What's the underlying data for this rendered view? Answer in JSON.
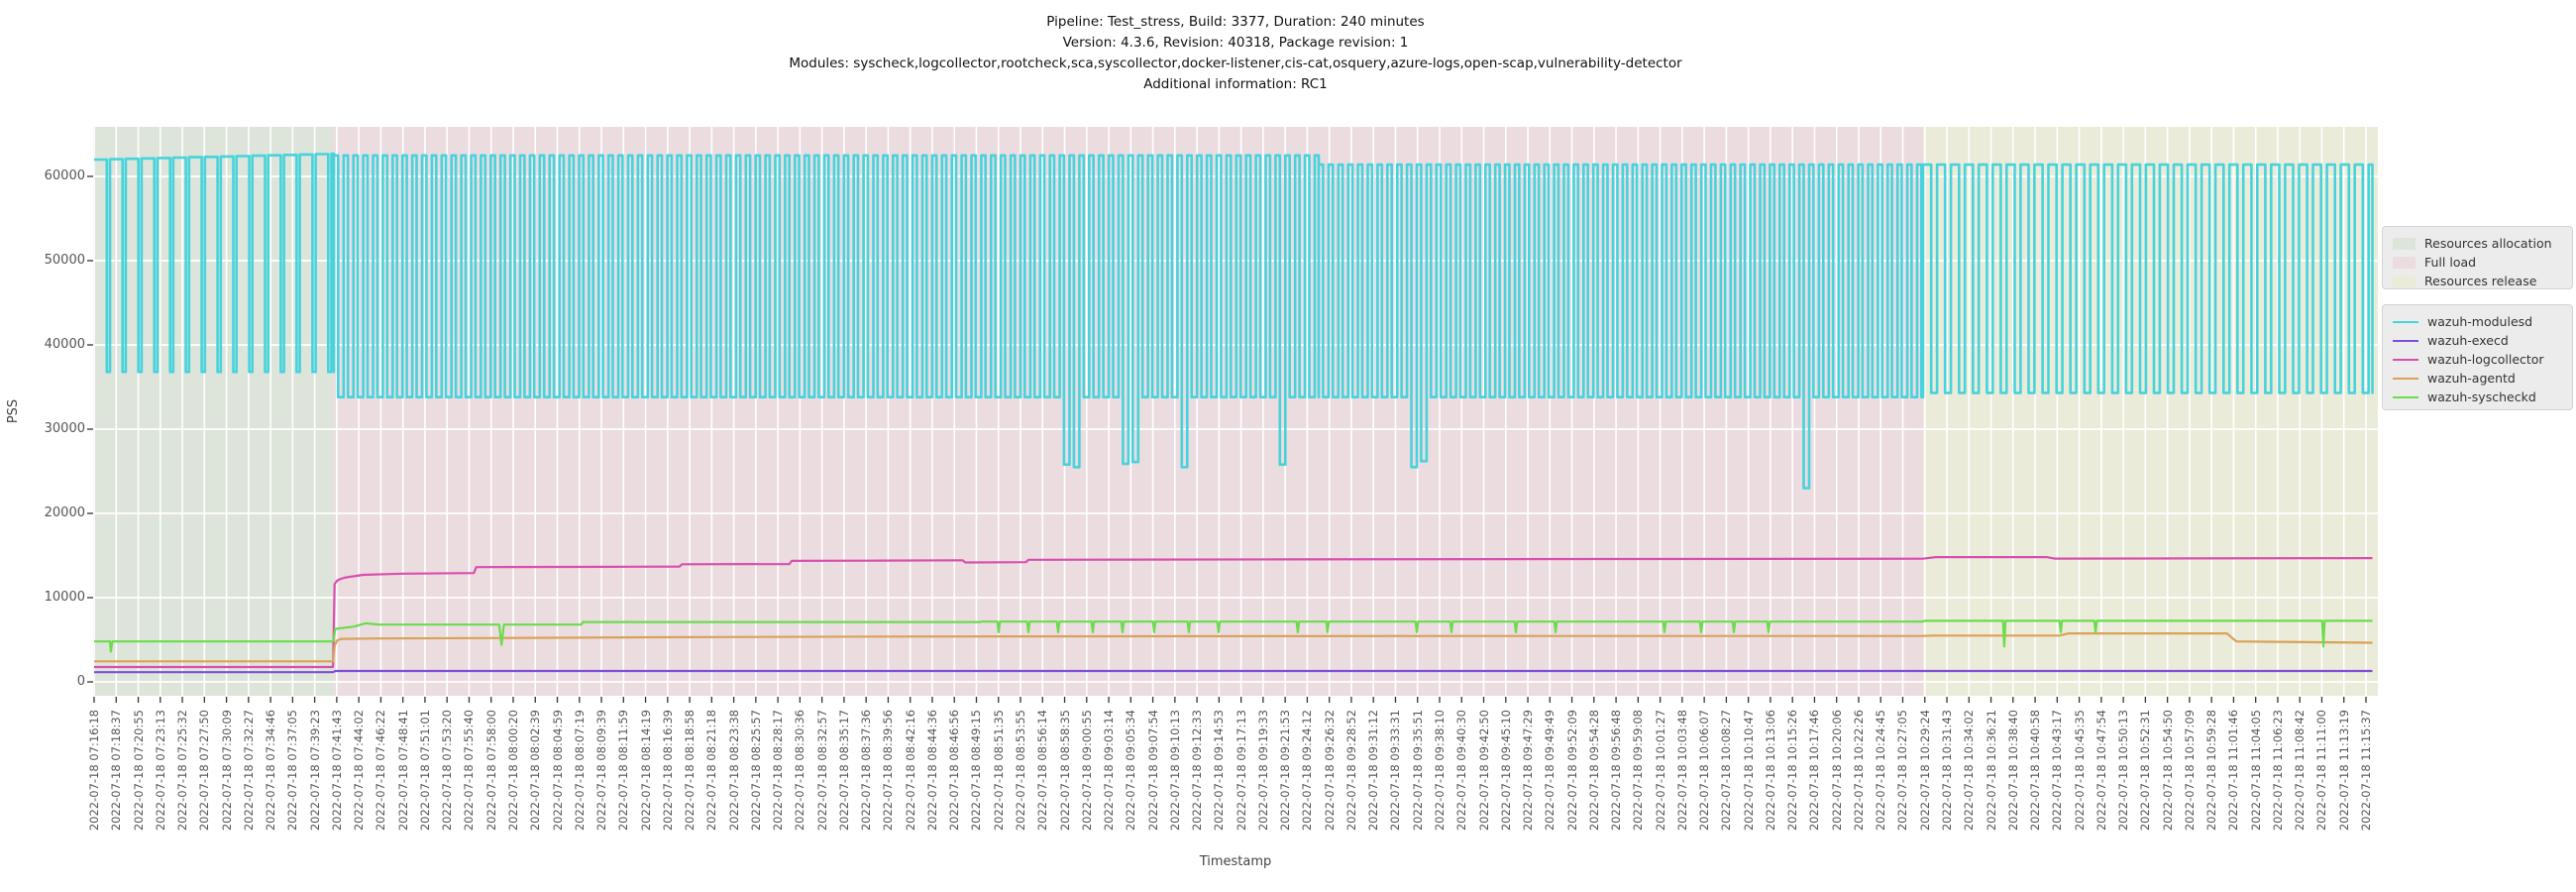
{
  "title": {
    "line1": "Pipeline: Test_stress, Build: 3377, Duration: 240 minutes",
    "line2": "Version: 4.3.6, Revision: 40318, Package revision: 1",
    "line3": "Modules: syscheck,logcollector,rootcheck,sca,syscollector,docker-listener,cis-cat,osquery,azure-logs,open-scap,vulnerability-detector",
    "line4": "Additional information: RC1"
  },
  "axes": {
    "ylabel": "PSS",
    "xlabel": "Timestamp"
  },
  "chart_data": {
    "type": "line",
    "ylabel": "PSS",
    "xlabel": "Timestamp",
    "ylim": [
      -1650,
      65900
    ],
    "y_ticks": [
      0,
      10000,
      20000,
      30000,
      40000,
      50000,
      60000
    ],
    "grid": true,
    "legend_position": "right",
    "x_start": "2022-07-18 07:16:18",
    "x_end": "2022-07-18 11:15:37",
    "x_total_seconds": 14359,
    "x_ticks": [
      "2022-07-18 07:16:18",
      "2022-07-18 07:18:37",
      "2022-07-18 07:20:55",
      "2022-07-18 07:23:13",
      "2022-07-18 07:25:32",
      "2022-07-18 07:27:50",
      "2022-07-18 07:30:09",
      "2022-07-18 07:32:27",
      "2022-07-18 07:34:46",
      "2022-07-18 07:37:05",
      "2022-07-18 07:39:23",
      "2022-07-18 07:41:43",
      "2022-07-18 07:44:02",
      "2022-07-18 07:46:22",
      "2022-07-18 07:48:41",
      "2022-07-18 07:51:01",
      "2022-07-18 07:53:20",
      "2022-07-18 07:55:40",
      "2022-07-18 07:58:00",
      "2022-07-18 08:00:20",
      "2022-07-18 08:02:39",
      "2022-07-18 08:04:59",
      "2022-07-18 08:07:19",
      "2022-07-18 08:09:39",
      "2022-07-18 08:11:59",
      "2022-07-18 08:14:19",
      "2022-07-18 08:16:39",
      "2022-07-18 08:18:58",
      "2022-07-18 08:21:18",
      "2022-07-18 08:23:38",
      "2022-07-18 08:25:57",
      "2022-07-18 08:28:17",
      "2022-07-18 08:30:36",
      "2022-07-18 08:32:57",
      "2022-07-18 08:35:17",
      "2022-07-18 08:37:36",
      "2022-07-18 08:39:56",
      "2022-07-18 08:42:16",
      "2022-07-18 08:44:36",
      "2022-07-18 08:46:56",
      "2022-07-18 08:49:15",
      "2022-07-18 08:51:35",
      "2022-07-18 08:53:55",
      "2022-07-18 08:56:14",
      "2022-07-18 08:58:35",
      "2022-07-18 09:00:55",
      "2022-07-18 09:03:14",
      "2022-07-18 09:05:34",
      "2022-07-18 09:07:54",
      "2022-07-18 09:10:13",
      "2022-07-18 09:12:33",
      "2022-07-18 09:14:53",
      "2022-07-18 09:17:13",
      "2022-07-18 09:19:33",
      "2022-07-18 09:21:53",
      "2022-07-18 09:24:12",
      "2022-07-18 09:26:32",
      "2022-07-18 09:28:52",
      "2022-07-18 09:31:12",
      "2022-07-18 09:33:31",
      "2022-07-18 09:35:51",
      "2022-07-18 09:38:10",
      "2022-07-18 09:40:30",
      "2022-07-18 09:42:50",
      "2022-07-18 09:45:10",
      "2022-07-18 09:47:29",
      "2022-07-18 09:49:49",
      "2022-07-18 09:52:09",
      "2022-07-18 09:54:28",
      "2022-07-18 09:56:48",
      "2022-07-18 09:59:08",
      "2022-07-18 10:01:27",
      "2022-07-18 10:03:48",
      "2022-07-18 10:06:07",
      "2022-07-18 10:08:27",
      "2022-07-18 10:10:47",
      "2022-07-18 10:13:06",
      "2022-07-18 10:15:26",
      "2022-07-18 10:17:46",
      "2022-07-18 10:20:06",
      "2022-07-18 10:22:26",
      "2022-07-18 10:24:45",
      "2022-07-18 10:27:05",
      "2022-07-18 10:29:24",
      "2022-07-18 10:31:43",
      "2022-07-18 10:34:02",
      "2022-07-18 10:36:21",
      "2022-07-18 10:38:40",
      "2022-07-18 10:40:58",
      "2022-07-18 10:43:17",
      "2022-07-18 10:45:35",
      "2022-07-18 10:47:54",
      "2022-07-18 10:50:13",
      "2022-07-18 10:52:31",
      "2022-07-18 10:54:50",
      "2022-07-18 10:57:09",
      "2022-07-18 10:59:28",
      "2022-07-18 11:01:46",
      "2022-07-18 11:04:05",
      "2022-07-18 11:06:23",
      "2022-07-18 11:08:42",
      "2022-07-18 11:11:00",
      "2022-07-18 11:13:19",
      "2022-07-18 11:15:37"
    ],
    "phases": [
      {
        "label": "Resources allocation",
        "start_s": -10,
        "end_s": 1515,
        "color": "#dde4da"
      },
      {
        "label": "Full load",
        "start_s": 1515,
        "end_s": 11560,
        "color": "#ebdce0"
      },
      {
        "label": "Resources release",
        "start_s": 11560,
        "end_s": 14440,
        "color": "#ebebd9"
      }
    ],
    "series": [
      {
        "name": "wazuh-modulesd",
        "color": "#46d3dc",
        "pattern": {
          "phases": [
            {
              "start_s": 0,
              "end_s": 1515,
              "high": 62000,
              "high_end": 62700,
              "low": 36800,
              "period_s": 100,
              "high_frac": 0.8
            },
            {
              "start_s": 1515,
              "end_s": 7740,
              "high": 62500,
              "low": 33800,
              "period_s": 62,
              "high_frac": 0.44
            },
            {
              "start_s": 7740,
              "end_s": 11560,
              "high": 61400,
              "low": 33800,
              "period_s": 62,
              "high_frac": 0.44
            },
            {
              "start_s": 11560,
              "end_s": 14400,
              "high": 61400,
              "low": 34300,
              "period_s": 88,
              "high_frac": 0.58
            }
          ],
          "deep_dips": [
            [
              6120,
              25800
            ],
            [
              6210,
              25500
            ],
            [
              6500,
              25900
            ],
            [
              6590,
              26100
            ],
            [
              6900,
              25500
            ],
            [
              7470,
              25800
            ],
            [
              8300,
              25500
            ],
            [
              8390,
              26200
            ],
            [
              10780,
              23000
            ]
          ]
        }
      },
      {
        "name": "wazuh-execd",
        "color": "#7e4fd8",
        "points": [
          [
            0,
            1150
          ],
          [
            1510,
            1150
          ],
          [
            1525,
            1290
          ],
          [
            14400,
            1290
          ]
        ]
      },
      {
        "name": "wazuh-logcollector",
        "color": "#da4fae",
        "points": [
          [
            0,
            1760
          ],
          [
            1510,
            1760
          ],
          [
            1520,
            11600
          ],
          [
            1535,
            12000
          ],
          [
            1555,
            12200
          ],
          [
            1590,
            12400
          ],
          [
            1700,
            12700
          ],
          [
            1950,
            12850
          ],
          [
            2400,
            12920
          ],
          [
            2415,
            13620
          ],
          [
            3290,
            13660
          ],
          [
            3700,
            13690
          ],
          [
            3715,
            13960
          ],
          [
            4395,
            13990
          ],
          [
            4410,
            14360
          ],
          [
            4900,
            14390
          ],
          [
            5490,
            14430
          ],
          [
            5505,
            14180
          ],
          [
            5890,
            14210
          ],
          [
            5905,
            14490
          ],
          [
            7500,
            14540
          ],
          [
            9500,
            14590
          ],
          [
            11560,
            14620
          ],
          [
            11640,
            14810
          ],
          [
            12340,
            14810
          ],
          [
            12390,
            14630
          ],
          [
            14400,
            14690
          ]
        ]
      },
      {
        "name": "wazuh-agentd",
        "color": "#d9a258",
        "points": [
          [
            0,
            2430
          ],
          [
            1510,
            2430
          ],
          [
            1520,
            4300
          ],
          [
            1535,
            4900
          ],
          [
            1560,
            5100
          ],
          [
            1800,
            5150
          ],
          [
            2500,
            5200
          ],
          [
            3500,
            5300
          ],
          [
            5000,
            5380
          ],
          [
            7000,
            5420
          ],
          [
            9000,
            5450
          ],
          [
            11560,
            5450
          ],
          [
            11620,
            5500
          ],
          [
            12420,
            5500
          ],
          [
            12480,
            5750
          ],
          [
            13480,
            5750
          ],
          [
            13540,
            4800
          ],
          [
            14400,
            4650
          ]
        ]
      },
      {
        "name": "wazuh-syscheckd",
        "color": "#6bdc4c",
        "points": [
          [
            0,
            4800
          ],
          [
            100,
            4800
          ],
          [
            106,
            3600
          ],
          [
            115,
            4800
          ],
          [
            1510,
            4800
          ],
          [
            1525,
            6300
          ],
          [
            1640,
            6550
          ],
          [
            1715,
            6950
          ],
          [
            1800,
            6800
          ],
          [
            2560,
            6800
          ],
          [
            2575,
            4400
          ],
          [
            2590,
            6800
          ],
          [
            3080,
            6800
          ],
          [
            3090,
            7100
          ],
          [
            5600,
            7100
          ],
          [
            5610,
            7150
          ],
          [
            11560,
            7150
          ],
          [
            11570,
            7250
          ],
          [
            14400,
            7250
          ]
        ],
        "spikes": [
          [
            5717,
            5900
          ],
          [
            5905,
            5900
          ],
          [
            6093,
            5900
          ],
          [
            6312,
            5900
          ],
          [
            6500,
            5900
          ],
          [
            6700,
            5900
          ],
          [
            6919,
            5900
          ],
          [
            7107,
            5900
          ],
          [
            7608,
            5900
          ],
          [
            7796,
            5900
          ],
          [
            8360,
            5900
          ],
          [
            8579,
            5900
          ],
          [
            8986,
            5900
          ],
          [
            9237,
            5900
          ],
          [
            9925,
            5900
          ],
          [
            10157,
            5900
          ],
          [
            10364,
            5900
          ],
          [
            10583,
            5900
          ],
          [
            12073,
            4200
          ],
          [
            12430,
            5900
          ],
          [
            12650,
            5900
          ],
          [
            14090,
            4200
          ]
        ]
      }
    ],
    "style": {
      "grid_color": "#ffffff",
      "tick_color": "#333333",
      "legend_bg": "#ececec"
    }
  }
}
